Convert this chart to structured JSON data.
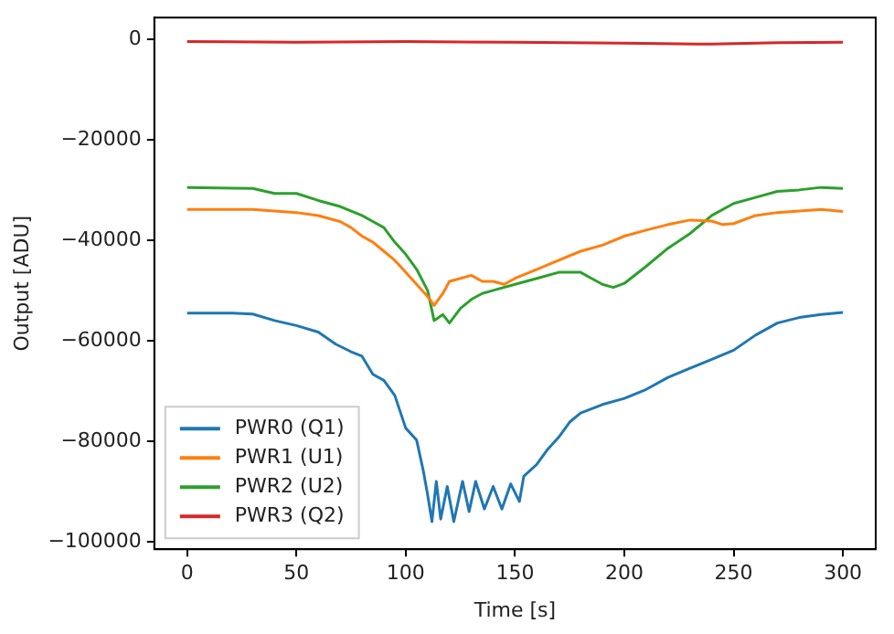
{
  "chart_data": {
    "type": "line",
    "xlabel": "Time [s]",
    "ylabel": "Output [ADU]",
    "xlim": [
      -15,
      315
    ],
    "ylim": [
      -101500,
      4300
    ],
    "xticks": [
      0,
      50,
      100,
      150,
      200,
      250,
      300
    ],
    "yticks": [
      0,
      -20000,
      -40000,
      -60000,
      -80000,
      -100000
    ],
    "grid": false,
    "legend": "bottom left",
    "marker": "none",
    "line_style": "solid",
    "series": [
      {
        "name": "PWR0 (Q1)",
        "color": "#1f77b4",
        "x": [
          0,
          20,
          30,
          40,
          50,
          60,
          68,
          75,
          80,
          85,
          90,
          95,
          100,
          105,
          108,
          110,
          112,
          114,
          116,
          119,
          122,
          126,
          129,
          132,
          136,
          140,
          144,
          148,
          152,
          154,
          160,
          165,
          170,
          175,
          180,
          190,
          200,
          210,
          220,
          230,
          240,
          250,
          260,
          270,
          280,
          290,
          300
        ],
        "values": [
          -54500,
          -54500,
          -54700,
          -56000,
          -57000,
          -58300,
          -60700,
          -62200,
          -63100,
          -66700,
          -67900,
          -70900,
          -77400,
          -79800,
          -85800,
          -90600,
          -96000,
          -88000,
          -95500,
          -89000,
          -96000,
          -88000,
          -94000,
          -88000,
          -93500,
          -89000,
          -93500,
          -88500,
          -92000,
          -87000,
          -84600,
          -81600,
          -79200,
          -76200,
          -74400,
          -72700,
          -71500,
          -69700,
          -67300,
          -65500,
          -63700,
          -61900,
          -58900,
          -56500,
          -55400,
          -54800,
          -54400
        ]
      },
      {
        "name": "PWR1 (U1)",
        "color": "#ff7f0e",
        "x": [
          0,
          30,
          50,
          60,
          70,
          75,
          80,
          85,
          90,
          95,
          100,
          105,
          110,
          113,
          117,
          120,
          125,
          130,
          135,
          140,
          145,
          150,
          160,
          170,
          180,
          190,
          200,
          210,
          220,
          230,
          240,
          245,
          250,
          260,
          270,
          280,
          290,
          300
        ],
        "values": [
          -33900,
          -33900,
          -34500,
          -35100,
          -36300,
          -37500,
          -39200,
          -40400,
          -42200,
          -44000,
          -46400,
          -48800,
          -51200,
          -53000,
          -50600,
          -48200,
          -47600,
          -47000,
          -48200,
          -48200,
          -48800,
          -47600,
          -45800,
          -44000,
          -42200,
          -41000,
          -39200,
          -38000,
          -36900,
          -36000,
          -36200,
          -36900,
          -36700,
          -35100,
          -34500,
          -34200,
          -33900,
          -34300
        ]
      },
      {
        "name": "PWR2 (U2)",
        "color": "#2ca02c",
        "x": [
          0,
          30,
          40,
          50,
          60,
          70,
          80,
          85,
          90,
          95,
          100,
          105,
          110,
          113,
          117,
          120,
          125,
          130,
          135,
          140,
          150,
          160,
          170,
          180,
          185,
          190,
          195,
          200,
          210,
          220,
          230,
          240,
          250,
          260,
          270,
          280,
          290,
          300
        ],
        "values": [
          -29500,
          -29700,
          -30700,
          -30700,
          -32100,
          -33300,
          -35100,
          -36300,
          -37500,
          -40400,
          -42800,
          -45800,
          -50000,
          -56000,
          -54800,
          -56500,
          -53600,
          -51800,
          -50600,
          -50000,
          -48800,
          -47600,
          -46400,
          -46400,
          -47600,
          -48800,
          -49400,
          -48600,
          -45200,
          -41600,
          -38700,
          -35100,
          -32700,
          -31500,
          -30300,
          -30000,
          -29500,
          -29700
        ]
      },
      {
        "name": "PWR3 (Q2)",
        "color": "#d62728",
        "x": [
          0,
          50,
          100,
          150,
          200,
          240,
          270,
          300
        ],
        "values": [
          -500,
          -600,
          -500,
          -600,
          -800,
          -1000,
          -700,
          -600
        ]
      }
    ]
  }
}
